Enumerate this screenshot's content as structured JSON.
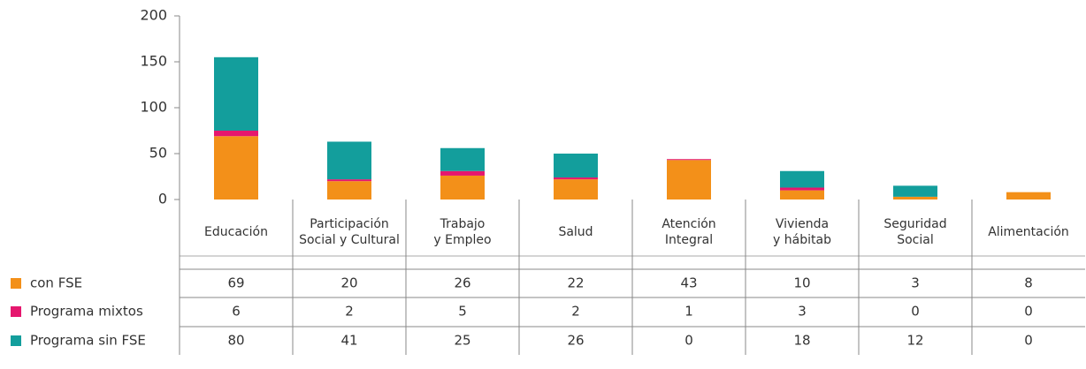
{
  "chart_data": {
    "type": "stacked_bar",
    "categories": [
      "Educación",
      "Participación\nSocial y Cultural",
      "Trabajo\ny Empleo",
      "Salud",
      "Atención\nIntegral",
      "Vivienda\ny hábitab",
      "Seguridad\nSocial",
      "Alimentación"
    ],
    "series": [
      {
        "name": "con FSE",
        "color": "#f39019",
        "values": [
          69,
          20,
          26,
          22,
          43,
          10,
          3,
          8
        ]
      },
      {
        "name": "Programa mixtos",
        "color": "#e5176e",
        "values": [
          6,
          2,
          5,
          2,
          1,
          3,
          0,
          0
        ]
      },
      {
        "name": "Programa sin FSE",
        "color": "#139e9c",
        "values": [
          80,
          41,
          25,
          26,
          0,
          18,
          12,
          0
        ]
      }
    ],
    "ylim": [
      0,
      200
    ],
    "yticks": [
      0,
      50,
      100,
      150,
      200
    ]
  }
}
